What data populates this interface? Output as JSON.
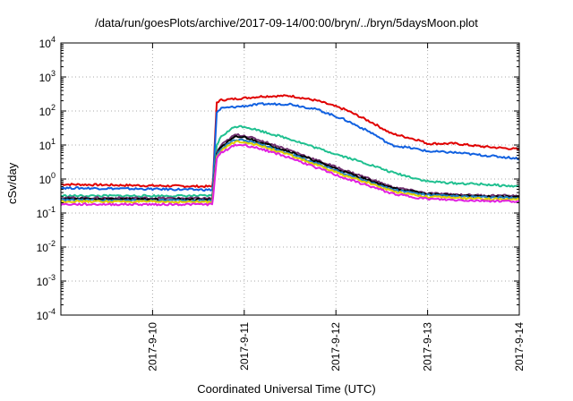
{
  "chart_data": {
    "type": "line",
    "title": "/data/run/goesPlots/archive/2017-09-14/00:00/bryn/../bryn/5daysMoon.plot",
    "xlabel": "Coordinated Universal Time (UTC)",
    "ylabel": "cSv/day",
    "yscale": "log",
    "ylim": [
      0.0001,
      10000
    ],
    "xlim": [
      0,
      5
    ],
    "grid": true,
    "x_ticks": [
      {
        "value": 1,
        "label": "2017-9-10"
      },
      {
        "value": 2,
        "label": "2017-9-11"
      },
      {
        "value": 3,
        "label": "2017-9-12"
      },
      {
        "value": 4,
        "label": "2017-9-13"
      },
      {
        "value": 5,
        "label": "2017-9-14"
      }
    ],
    "y_ticks": [
      {
        "value": 0.0001,
        "base": "10",
        "exp": "-4"
      },
      {
        "value": 0.001,
        "base": "10",
        "exp": "-3"
      },
      {
        "value": 0.01,
        "base": "10",
        "exp": "-2"
      },
      {
        "value": 0.1,
        "base": "10",
        "exp": "-1"
      },
      {
        "value": 1,
        "base": "10",
        "exp": "0"
      },
      {
        "value": 10,
        "base": "10",
        "exp": "1"
      },
      {
        "value": 100,
        "base": "10",
        "exp": "2"
      },
      {
        "value": 1000,
        "base": "10",
        "exp": "3"
      },
      {
        "value": 10000,
        "base": "10",
        "exp": "4"
      }
    ],
    "series": [
      {
        "color": "#e00000",
        "x": [
          0,
          1.65,
          1.66,
          1.7,
          1.75,
          2.0,
          2.2,
          2.5,
          2.8,
          3.1,
          3.4,
          3.6,
          3.9,
          4.0,
          4.3,
          4.6,
          5.0
        ],
        "y": [
          0.7,
          0.6,
          1.0,
          180,
          210,
          240,
          270,
          280,
          200,
          110,
          45,
          22,
          14,
          11,
          11,
          9,
          7.5
        ]
      },
      {
        "color": "#1060e0",
        "x": [
          0,
          1.65,
          1.66,
          1.7,
          1.75,
          2.0,
          2.2,
          2.5,
          2.8,
          3.1,
          3.4,
          3.6,
          3.9,
          4.0,
          4.3,
          4.6,
          5.0
        ],
        "y": [
          0.55,
          0.48,
          0.8,
          90,
          120,
          140,
          160,
          160,
          110,
          55,
          22,
          10,
          7.5,
          6.5,
          6,
          5,
          4
        ]
      },
      {
        "color": "#20c090",
        "x": [
          0,
          1.65,
          1.66,
          1.7,
          1.75,
          1.9,
          2.0,
          2.2,
          2.5,
          2.8,
          3.1,
          3.4,
          3.6,
          3.9,
          4.0,
          4.3,
          4.6,
          5.0
        ],
        "y": [
          0.32,
          0.32,
          0.5,
          10,
          18,
          35,
          35,
          25,
          15,
          8,
          4.5,
          2.5,
          1.6,
          1.0,
          0.85,
          0.75,
          0.7,
          0.6
        ]
      },
      {
        "color": "#703070",
        "x": [
          0,
          1.65,
          1.66,
          1.7,
          1.75,
          1.9,
          2.0,
          2.2,
          2.5,
          2.8,
          3.1,
          3.4,
          3.6,
          3.9,
          4.0,
          4.3,
          4.6,
          5.0
        ],
        "y": [
          0.28,
          0.27,
          0.45,
          6,
          10,
          20,
          19,
          13,
          7,
          3.5,
          1.8,
          0.95,
          0.6,
          0.42,
          0.38,
          0.35,
          0.33,
          0.32
        ]
      },
      {
        "color": "#000000",
        "x": [
          0,
          1.65,
          1.66,
          1.7,
          1.75,
          1.9,
          2.0,
          2.2,
          2.5,
          2.8,
          3.1,
          3.4,
          3.6,
          3.9,
          4.0,
          4.3,
          4.6,
          5.0
        ],
        "y": [
          0.26,
          0.25,
          0.42,
          5.5,
          9,
          17,
          17,
          11.5,
          6.3,
          3.2,
          1.6,
          0.85,
          0.55,
          0.4,
          0.36,
          0.33,
          0.31,
          0.3
        ]
      },
      {
        "color": "#2080c0",
        "x": [
          0,
          1.65,
          1.66,
          1.7,
          1.75,
          1.9,
          2.0,
          2.2,
          2.5,
          2.8,
          3.1,
          3.4,
          3.6,
          3.9,
          4.0,
          4.3,
          4.6,
          5.0
        ],
        "y": [
          0.24,
          0.23,
          0.38,
          5,
          8,
          14,
          14,
          10,
          5.5,
          2.8,
          1.4,
          0.78,
          0.5,
          0.37,
          0.34,
          0.31,
          0.29,
          0.28
        ]
      },
      {
        "color": "#e0d000",
        "x": [
          0,
          1.65,
          1.66,
          1.7,
          1.75,
          1.9,
          2.0,
          2.2,
          2.5,
          2.8,
          3.1,
          3.4,
          3.6,
          3.9,
          4.0,
          4.3,
          4.6,
          5.0
        ],
        "y": [
          0.22,
          0.21,
          0.34,
          4.5,
          7,
          12.5,
          12.5,
          9,
          5,
          2.5,
          1.25,
          0.7,
          0.45,
          0.33,
          0.3,
          0.28,
          0.26,
          0.25
        ]
      },
      {
        "color": "#e020e0",
        "x": [
          0,
          1.65,
          1.66,
          1.7,
          1.75,
          1.9,
          2.0,
          2.2,
          2.5,
          2.8,
          3.1,
          3.4,
          3.6,
          3.9,
          4.0,
          4.3,
          4.6,
          5.0
        ],
        "y": [
          0.18,
          0.18,
          0.28,
          4,
          6,
          10,
          10,
          7.5,
          4.2,
          2.1,
          1.05,
          0.58,
          0.38,
          0.28,
          0.26,
          0.24,
          0.23,
          0.22
        ]
      }
    ]
  }
}
